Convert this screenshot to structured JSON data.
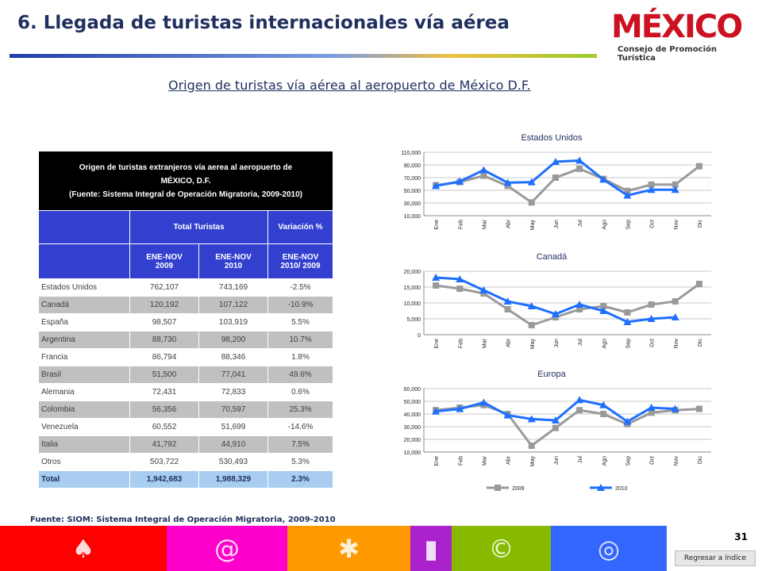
{
  "header": {
    "title": "6. Llegada de turistas internacionales vía aérea",
    "subtitle": "Origen de turistas vía aérea al aeropuerto de México D.F.",
    "logo_word": "MÉXICO",
    "logo_subtitle": "Consejo de Promoción Turística"
  },
  "table": {
    "title_line1": "Origen de turistas extranjeros vía aerea al aeropuerto de",
    "title_line2": "MÉXICO, D.F.",
    "title_line3": "(Fuente: Sistema Integral de Operación Migratoria, 2009-2010)",
    "col_total": "Total Turistas",
    "col_var": "Variación %",
    "sub_2009_a": "ENE-NOV",
    "sub_2009_b": "2009",
    "sub_2010_a": "ENE-NOV",
    "sub_2010_b": "2010",
    "sub_var_a": "ENE-NOV",
    "sub_var_b": "2010/ 2009",
    "rows": [
      {
        "country": "Estados Unidos",
        "v2009": "762,107",
        "v2010": "743,169",
        "var": "-2.5%"
      },
      {
        "country": "Canadá",
        "v2009": "120,192",
        "v2010": "107,122",
        "var": "-10.9%"
      },
      {
        "country": "España",
        "v2009": "98,507",
        "v2010": "103,919",
        "var": "5.5%"
      },
      {
        "country": "Argentina",
        "v2009": "88,730",
        "v2010": "98,200",
        "var": "10.7%"
      },
      {
        "country": "Francia",
        "v2009": "86,794",
        "v2010": "88,346",
        "var": "1.8%"
      },
      {
        "country": "Brasil",
        "v2009": "51,500",
        "v2010": "77,041",
        "var": "49.6%"
      },
      {
        "country": "Alemania",
        "v2009": "72,431",
        "v2010": "72,833",
        "var": "0.6%"
      },
      {
        "country": "Colombia",
        "v2009": "56,356",
        "v2010": "70,597",
        "var": "25.3%"
      },
      {
        "country": "Venezuela",
        "v2009": "60,552",
        "v2010": "51,699",
        "var": "-14.6%"
      },
      {
        "country": "Italia",
        "v2009": "41,792",
        "v2010": "44,910",
        "var": "7.5%"
      },
      {
        "country": "Otros",
        "v2009": "503,722",
        "v2010": "530,493",
        "var": "5.3%"
      }
    ],
    "total": {
      "country": "Total",
      "v2009": "1,942,683",
      "v2010": "1,988,329",
      "var": "2.3%"
    }
  },
  "footer": {
    "source": "Fuente: SIOM: Sistema Integral de Operación Migratoria, 2009-2010",
    "page_number": "31",
    "back_button": "Regresar a índice",
    "band_colors": [
      "#ff0000",
      "#ff00cc",
      "#ff9900",
      "#aa22cc",
      "#88bb00",
      "#3366ff"
    ]
  },
  "colors": {
    "series_2009": "#9a9a9a",
    "series_2010": "#1f6fff",
    "title_color": "#1f2f5e"
  },
  "chart_data": [
    {
      "type": "line",
      "title": "Estados Unidos",
      "categories": [
        "Ene",
        "Feb",
        "Mar",
        "Abr",
        "May",
        "Jun",
        "Jul",
        "Ago",
        "Sep",
        "Oct",
        "Nov",
        "Dic"
      ],
      "ylim": [
        10000,
        110000
      ],
      "yticks": [
        "10,000",
        "30,000",
        "50,000",
        "70,000",
        "90,000",
        "110,000"
      ],
      "grid": true,
      "series": [
        {
          "name": "2009",
          "values": [
            58000,
            63000,
            73000,
            57000,
            31000,
            70000,
            84000,
            68000,
            49000,
            59000,
            59000,
            88000
          ]
        },
        {
          "name": "2010",
          "values": [
            57000,
            64000,
            82000,
            62000,
            63000,
            95000,
            97000,
            67000,
            42000,
            51000,
            51000,
            null
          ]
        }
      ]
    },
    {
      "type": "line",
      "title": "Canadá",
      "categories": [
        "Ene",
        "Feb",
        "Mar",
        "Abr",
        "May",
        "Jun",
        "Jul",
        "Ago",
        "Sep",
        "Oct",
        "Nov",
        "Dic"
      ],
      "ylim": [
        0,
        20000
      ],
      "yticks": [
        "0",
        "5,000",
        "10,000",
        "15,000",
        "20,000"
      ],
      "grid": true,
      "series": [
        {
          "name": "2009",
          "values": [
            15500,
            14500,
            13000,
            8000,
            3000,
            5500,
            8000,
            9000,
            7000,
            9500,
            10500,
            16000
          ]
        },
        {
          "name": "2010",
          "values": [
            18000,
            17500,
            14000,
            10500,
            9000,
            6500,
            9500,
            7500,
            4000,
            5000,
            5500,
            null
          ]
        }
      ]
    },
    {
      "type": "line",
      "title": "Europa",
      "categories": [
        "Ene",
        "Feb",
        "Mar",
        "Abr",
        "May",
        "Jun",
        "Jul",
        "Ago",
        "Sep",
        "Oct",
        "Nov",
        "Dic"
      ],
      "ylim": [
        10000,
        60000
      ],
      "yticks": [
        "10,000",
        "20,000",
        "30,000",
        "40,000",
        "50,000",
        "60,000"
      ],
      "grid": true,
      "legend": "bottom",
      "series": [
        {
          "name": "2009",
          "values": [
            43000,
            45000,
            47000,
            40000,
            15000,
            29000,
            43000,
            40000,
            32000,
            41000,
            43000,
            44000
          ]
        },
        {
          "name": "2010",
          "values": [
            42000,
            44000,
            49000,
            39000,
            36000,
            35000,
            51000,
            47000,
            34000,
            45000,
            44000,
            null
          ]
        }
      ]
    }
  ]
}
